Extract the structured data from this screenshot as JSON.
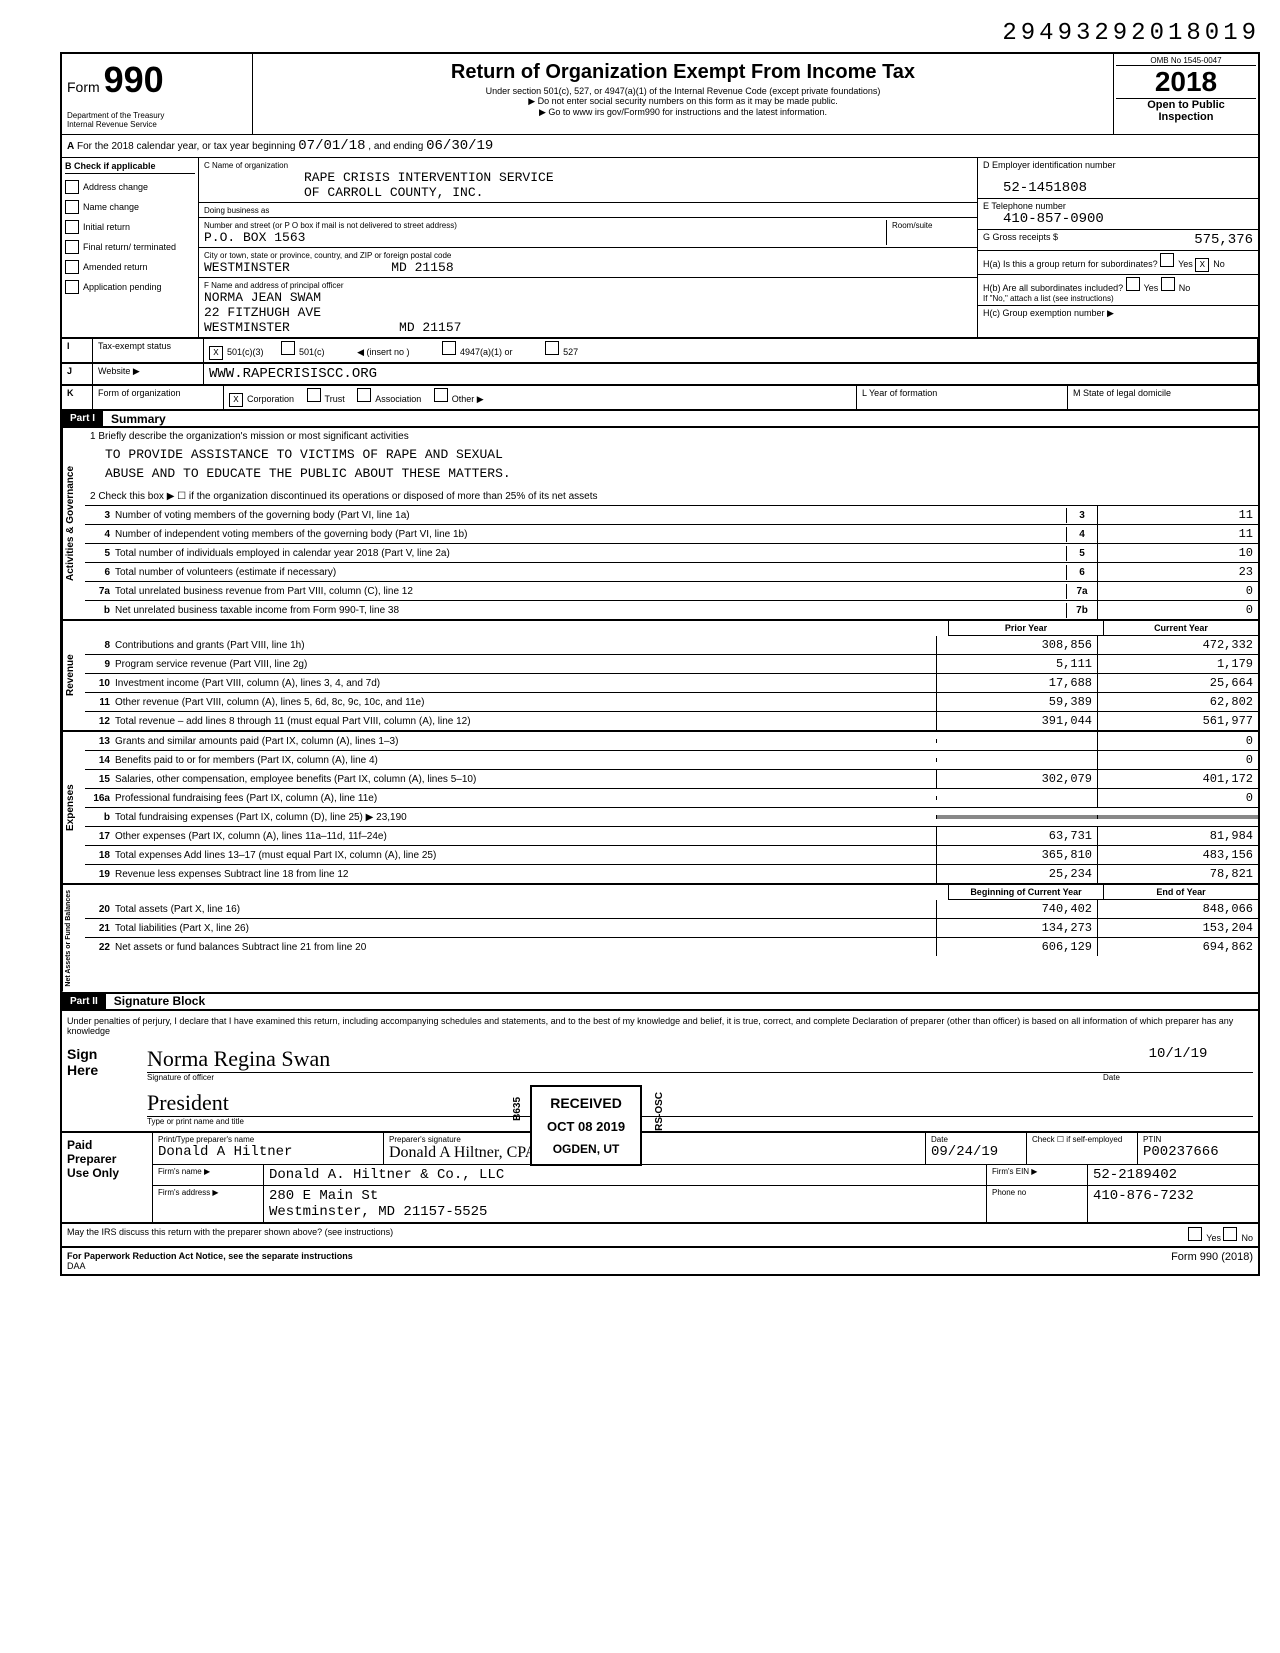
{
  "top_number": "29493292018019",
  "form": {
    "number": "990",
    "title": "Return of Organization Exempt From Income Tax",
    "subtitle": "Under section 501(c), 527, or 4947(a)(1) of the Internal Revenue Code (except private foundations)",
    "note1": "▶ Do not enter social security numbers on this form as it may be made public.",
    "note2": "▶ Go to www irs gov/Form990 for instructions and the latest information.",
    "dept": "Department of the Treasury\nInternal Revenue Service",
    "omb": "OMB No 1545-0047",
    "year": "2018",
    "open": "Open to Public\nInspection"
  },
  "row_a": {
    "label": "A",
    "text": "For the 2018 calendar year, or tax year beginning",
    "begin": "07/01/18",
    "mid": ", and ending",
    "end": "06/30/19"
  },
  "col_b": {
    "header": "B Check if applicable",
    "items": [
      "Address change",
      "Name change",
      "Initial return",
      "Final return/ terminated",
      "Amended return",
      "Application pending"
    ]
  },
  "col_c": {
    "name_label": "C Name of organization",
    "name1": "RAPE CRISIS INTERVENTION SERVICE",
    "name2": "OF CARROLL COUNTY, INC.",
    "dba_label": "Doing business as",
    "addr_label": "Number and street (or P O box if mail is not delivered to street address)",
    "addr": "P.O. BOX 1563",
    "room_label": "Room/suite",
    "city_label": "City or town, state or province, country, and ZIP or foreign postal code",
    "city": "WESTMINSTER             MD 21158",
    "officer_label": "F Name and address of principal officer",
    "officer1": "NORMA JEAN SWAM",
    "officer2": "22 FITZHUGH AVE",
    "officer3": "WESTMINSTER              MD 21157"
  },
  "col_d": {
    "ein_label": "D Employer identification number",
    "ein": "52-1451808",
    "phone_label": "E Telephone number",
    "phone": "410-857-0900",
    "gross_label": "G Gross receipts $",
    "gross": "575,376",
    "ha_label": "H(a) Is this a group return for subordinates?",
    "ha_no": "X",
    "hb_label": "H(b) Are all subordinates included?",
    "hb_note": "If \"No,\" attach a list (see instructions)",
    "hc_label": "H(c) Group exemption number ▶"
  },
  "row_i": {
    "label": "I",
    "text": "Tax-exempt status",
    "x501c3": "X",
    "opts": [
      "501(c)(3)",
      "501(c)",
      "◀ (insert no )",
      "4947(a)(1) or",
      "527"
    ]
  },
  "row_j": {
    "label": "J",
    "text": "Website ▶",
    "value": "WWW.RAPECRISISCC.ORG"
  },
  "row_k": {
    "label": "K",
    "text": "Form of organization",
    "xcorp": "X",
    "opts": [
      "Corporation",
      "Trust",
      "Association",
      "Other ▶"
    ],
    "l_label": "L  Year of formation",
    "m_label": "M  State of legal domicile"
  },
  "part1": {
    "header": "Part I",
    "title": "Summary"
  },
  "governance": {
    "label": "Activities & Governance",
    "line1_label": "1  Briefly describe the organization's mission or most significant activities",
    "mission1": "TO PROVIDE ASSISTANCE TO VICTIMS OF RAPE AND SEXUAL",
    "mission2": "ABUSE AND TO EDUCATE THE PUBLIC ABOUT THESE MATTERS.",
    "line2": "2  Check this box ▶ ☐ if the organization discontinued its operations or disposed of more than 25% of its net assets",
    "lines": [
      {
        "num": "3",
        "text": "Number of voting members of the governing body (Part VI, line 1a)",
        "box": "3",
        "val": "11"
      },
      {
        "num": "4",
        "text": "Number of independent voting members of the governing body (Part VI, line 1b)",
        "box": "4",
        "val": "11"
      },
      {
        "num": "5",
        "text": "Total number of individuals employed in calendar year 2018 (Part V, line 2a)",
        "box": "5",
        "val": "10"
      },
      {
        "num": "6",
        "text": "Total number of volunteers (estimate if necessary)",
        "box": "6",
        "val": "23"
      },
      {
        "num": "7a",
        "text": "Total unrelated business revenue from Part VIII, column (C), line 12",
        "box": "7a",
        "val": "0"
      },
      {
        "num": "b",
        "text": "Net unrelated business taxable income from Form 990-T, line 38",
        "box": "7b",
        "val": "0"
      }
    ]
  },
  "revenue": {
    "label": "Revenue",
    "prior_label": "Prior Year",
    "current_label": "Current Year",
    "lines": [
      {
        "num": "8",
        "text": "Contributions and grants (Part VIII, line 1h)",
        "prior": "308,856",
        "current": "472,332"
      },
      {
        "num": "9",
        "text": "Program service revenue (Part VIII, line 2g)",
        "prior": "5,111",
        "current": "1,179"
      },
      {
        "num": "10",
        "text": "Investment income (Part VIII, column (A), lines 3, 4, and 7d)",
        "prior": "17,688",
        "current": "25,664"
      },
      {
        "num": "11",
        "text": "Other revenue (Part VIII, column (A), lines 5, 6d, 8c, 9c, 10c, and 11e)",
        "prior": "59,389",
        "current": "62,802"
      },
      {
        "num": "12",
        "text": "Total revenue – add lines 8 through 11 (must equal Part VIII, column (A), line 12)",
        "prior": "391,044",
        "current": "561,977"
      }
    ]
  },
  "expenses": {
    "label": "Expenses",
    "lines": [
      {
        "num": "13",
        "text": "Grants and similar amounts paid (Part IX, column (A), lines 1–3)",
        "prior": "",
        "current": "0"
      },
      {
        "num": "14",
        "text": "Benefits paid to or for members (Part IX, column (A), line 4)",
        "prior": "",
        "current": "0"
      },
      {
        "num": "15",
        "text": "Salaries, other compensation, employee benefits (Part IX, column (A), lines 5–10)",
        "prior": "302,079",
        "current": "401,172"
      },
      {
        "num": "16a",
        "text": "Professional fundraising fees (Part IX, column (A), line 11e)",
        "prior": "",
        "current": "0"
      },
      {
        "num": "b",
        "text": "Total fundraising expenses (Part IX, column (D), line 25) ▶                23,190",
        "prior": "■",
        "current": "■"
      },
      {
        "num": "17",
        "text": "Other expenses (Part IX, column (A), lines 11a–11d, 11f–24e)",
        "prior": "63,731",
        "current": "81,984"
      },
      {
        "num": "18",
        "text": "Total expenses Add lines 13–17 (must equal Part IX, column (A), line 25)",
        "prior": "365,810",
        "current": "483,156"
      },
      {
        "num": "19",
        "text": "Revenue less expenses Subtract line 18 from line 12",
        "prior": "25,234",
        "current": "78,821"
      }
    ]
  },
  "netassets": {
    "label": "Net Assets or Fund Balances",
    "begin_label": "Beginning of Current Year",
    "end_label": "End of Year",
    "lines": [
      {
        "num": "20",
        "text": "Total assets (Part X, line 16)",
        "prior": "740,402",
        "current": "848,066"
      },
      {
        "num": "21",
        "text": "Total liabilities (Part X, line 26)",
        "prior": "134,273",
        "current": "153,204"
      },
      {
        "num": "22",
        "text": "Net assets or fund balances Subtract line 21 from line 20",
        "prior": "606,129",
        "current": "694,862"
      }
    ]
  },
  "part2": {
    "header": "Part II",
    "title": "Signature Block"
  },
  "perjury": "Under penalties of perjury, I declare that I have examined this return, including accompanying schedules and statements, and to the best of my knowledge and belief, it is true, correct, and complete Declaration of preparer (other than officer) is based on all information of which preparer has any knowledge",
  "sign": {
    "here": "Sign\nHere",
    "sig_label": "Signature of officer",
    "signature": "Norma Regina Swan",
    "title_label": "Type or print name and title",
    "title": "President",
    "date_label": "Date",
    "date": "10/1/19"
  },
  "preparer": {
    "label": "Paid\nPreparer\nUse Only",
    "name_label": "Print/Type preparer's name",
    "name": "Donald A Hiltner",
    "sig_label": "Preparer's signature",
    "signature": "Donald A Hiltner, CPA",
    "date_label": "Date",
    "date": "09/24/19",
    "check_label": "Check ☐ if self-employed",
    "ptin_label": "PTIN",
    "ptin": "P00237666",
    "firm_label": "Firm's name ▶",
    "firm": "Donald A. Hiltner & Co., LLC",
    "ein_label": "Firm's EIN ▶",
    "ein": "52-2189402",
    "addr_label": "Firm's address ▶",
    "addr1": "280 E Main St",
    "addr2": "Westminster, MD  21157-5525",
    "phone_label": "Phone no",
    "phone": "410-876-7232"
  },
  "footer": {
    "discuss": "May the IRS discuss this return with the preparer shown above? (see instructions)",
    "yes": "Yes",
    "no": "No",
    "paperwork": "For Paperwork Reduction Act Notice, see the separate instructions",
    "daa": "DAA",
    "form_ref": "Form 990 (2018)"
  },
  "stamps": {
    "received": "RECEIVED",
    "received_date": "OCT 08 2019",
    "received_code": "B635",
    "received_side": "RS-OSC",
    "ogden": "OGDEN, UT"
  }
}
